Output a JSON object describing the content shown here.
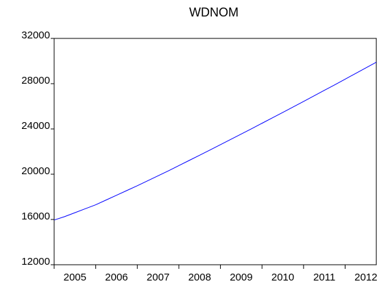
{
  "chart_data": {
    "type": "line",
    "title": "WDNOM",
    "x": [
      2005,
      2005.25,
      2005.5,
      2005.75,
      2006,
      2006.25,
      2006.5,
      2006.75,
      2007,
      2007.25,
      2007.5,
      2007.75,
      2008,
      2008.25,
      2008.5,
      2008.75,
      2009,
      2009.25,
      2009.5,
      2009.75,
      2010,
      2010.25,
      2010.5,
      2010.75,
      2011,
      2011.25,
      2011.5,
      2011.75,
      2012,
      2012.25,
      2012.5,
      2012.75
    ],
    "series": [
      {
        "name": "WDNOM",
        "color": "#0000ff",
        "values": [
          15950,
          16250,
          16600,
          16950,
          17300,
          17720,
          18140,
          18560,
          18980,
          19420,
          19860,
          20300,
          20760,
          21220,
          21680,
          22140,
          22610,
          23080,
          23550,
          24020,
          24500,
          24980,
          25460,
          25940,
          26430,
          26920,
          27410,
          27900,
          28400,
          28900,
          29400,
          29900
        ]
      }
    ],
    "xlim": [
      2005,
      2012.75
    ],
    "xticks": [
      2005,
      2006,
      2007,
      2008,
      2009,
      2010,
      2011,
      2012
    ],
    "ylim": [
      12000,
      32000
    ],
    "yticks": [
      12000,
      16000,
      20000,
      24000,
      28000,
      32000
    ],
    "grid": false
  }
}
